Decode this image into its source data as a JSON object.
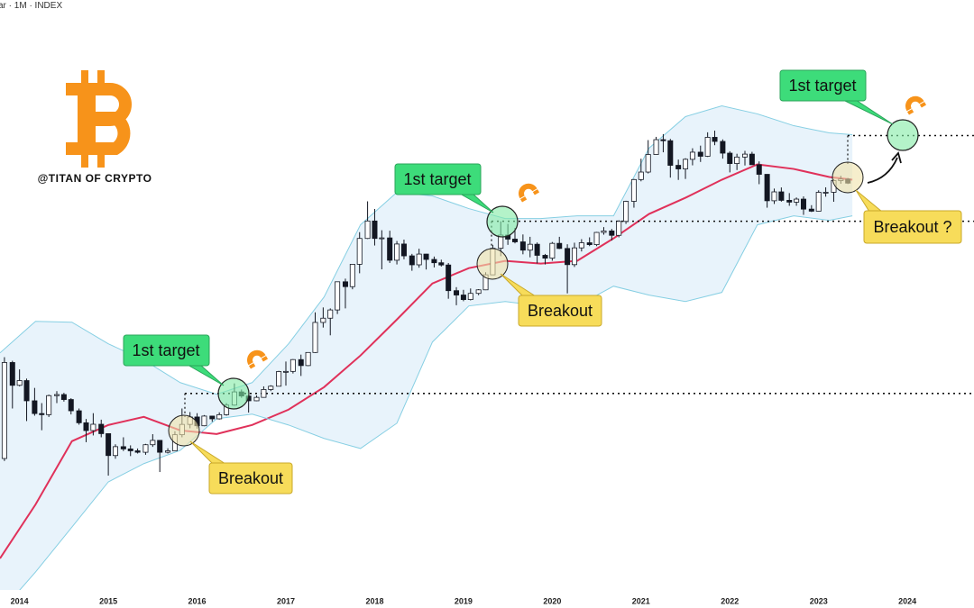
{
  "chart_data": {
    "type": "candlestick",
    "header": "ar · 1M · INDEX",
    "watermark": "@TITAN OF CRYPTO",
    "log_scale": true,
    "grid": false,
    "xlim": [
      2013.78,
      2024.75
    ],
    "xticks": [
      2014,
      2015,
      2016,
      2017,
      2018,
      2019,
      2020,
      2021,
      2022,
      2023,
      2024
    ],
    "ylim": [
      20,
      700000
    ],
    "up_color": "#ffffff",
    "down_color": "#131722",
    "x": [
      2013.83,
      2013.92,
      2014.0,
      2014.08,
      2014.17,
      2014.25,
      2014.33,
      2014.42,
      2014.5,
      2014.58,
      2014.67,
      2014.75,
      2014.83,
      2014.92,
      2015.0,
      2015.08,
      2015.17,
      2015.25,
      2015.33,
      2015.42,
      2015.5,
      2015.58,
      2015.67,
      2015.75,
      2015.83,
      2015.92,
      2016.0,
      2016.08,
      2016.17,
      2016.25,
      2016.33,
      2016.42,
      2016.5,
      2016.58,
      2016.67,
      2016.75,
      2016.83,
      2016.92,
      2017.0,
      2017.08,
      2017.17,
      2017.25,
      2017.33,
      2017.42,
      2017.5,
      2017.58,
      2017.67,
      2017.75,
      2017.83,
      2017.92,
      2018.0,
      2018.08,
      2018.17,
      2018.25,
      2018.33,
      2018.42,
      2018.5,
      2018.58,
      2018.67,
      2018.75,
      2018.83,
      2018.92,
      2019.0,
      2019.08,
      2019.17,
      2019.25,
      2019.33,
      2019.42,
      2019.5,
      2019.58,
      2019.67,
      2019.75,
      2019.83,
      2019.92,
      2020.0,
      2020.08,
      2020.17,
      2020.25,
      2020.33,
      2020.42,
      2020.5,
      2020.58,
      2020.67,
      2020.75,
      2020.83,
      2020.92,
      2021.0,
      2021.08,
      2021.17,
      2021.25,
      2021.33,
      2021.42,
      2021.5,
      2021.58,
      2021.67,
      2021.75,
      2021.83,
      2021.92,
      2022.0,
      2022.08,
      2022.17,
      2022.25,
      2022.33,
      2022.42,
      2022.5,
      2022.58,
      2022.67,
      2022.75,
      2022.83,
      2022.92,
      2023.0,
      2023.08,
      2023.17,
      2023.25,
      2023.33
    ],
    "open": [
      206,
      1130,
      754,
      820,
      573,
      457,
      448,
      628,
      640,
      586,
      480,
      388,
      338,
      378,
      320,
      217,
      254,
      244,
      236,
      230,
      263,
      284,
      230,
      236,
      314,
      377,
      430,
      368,
      437,
      416,
      448,
      531,
      671,
      624,
      573,
      609,
      700,
      742,
      963,
      965,
      1190,
      1070,
      1350,
      2300,
      2480,
      2870,
      4730,
      4340,
      6450,
      10200,
      13900,
      10200,
      10300,
      6930,
      9240,
      7490,
      6390,
      7730,
      7030,
      6630,
      6370,
      4040,
      3740,
      3450,
      3850,
      4100,
      5350,
      8570,
      10820,
      10080,
      9600,
      8290,
      9200,
      7560,
      7190,
      9350,
      8540,
      6410,
      8630,
      9450,
      9140,
      11350,
      11650,
      10780,
      13800,
      19700,
      28990,
      33100,
      45200,
      58800,
      57700,
      37300,
      35000,
      41500,
      47100,
      43800,
      61300,
      57000,
      46300,
      38500,
      43200,
      45500,
      37700,
      31800,
      19900,
      23300,
      20050,
      19420,
      20490,
      17160,
      16540,
      23120,
      23140,
      28460,
      29230
    ],
    "high": [
      1242,
      1165,
      1000,
      850,
      720,
      550,
      640,
      680,
      660,
      600,
      500,
      415,
      460,
      410,
      320,
      265,
      300,
      260,
      246,
      267,
      317,
      286,
      247,
      334,
      500,
      469,
      460,
      445,
      440,
      467,
      550,
      780,
      700,
      627,
      630,
      740,
      755,
      975,
      1150,
      1200,
      1300,
      1350,
      2750,
      3000,
      2950,
      4750,
      5000,
      6450,
      11400,
      19700,
      17200,
      11800,
      11700,
      9750,
      9990,
      7760,
      8500,
      7760,
      7400,
      7000,
      6600,
      4300,
      4100,
      4200,
      4150,
      5600,
      9100,
      13800,
      13200,
      12300,
      10950,
      10500,
      9500,
      7750,
      9580,
      10500,
      9200,
      9460,
      10070,
      10400,
      11450,
      12470,
      12080,
      14100,
      19900,
      29300,
      41950,
      58350,
      61800,
      64900,
      59600,
      41300,
      42300,
      50500,
      52900,
      67000,
      69000,
      59100,
      47900,
      45800,
      48200,
      47400,
      40000,
      31900,
      24700,
      25200,
      22800,
      21100,
      21500,
      18400,
      23950,
      25250,
      29200,
      31000,
      29800
    ],
    "low": [
      197,
      500,
      740,
      400,
      440,
      340,
      430,
      550,
      565,
      450,
      375,
      275,
      310,
      300,
      152,
      205,
      235,
      215,
      225,
      220,
      253,
      162,
      225,
      236,
      300,
      352,
      350,
      365,
      395,
      411,
      440,
      525,
      605,
      465,
      570,
      605,
      680,
      740,
      750,
      930,
      890,
      1060,
      1340,
      2100,
      1830,
      2670,
      2950,
      4140,
      5500,
      10100,
      9000,
      5900,
      6600,
      6430,
      7050,
      5750,
      6070,
      5880,
      6100,
      6200,
      3500,
      3120,
      3350,
      3400,
      3730,
      4080,
      5330,
      7450,
      9100,
      9350,
      7700,
      7300,
      6550,
      6430,
      6870,
      8450,
      3850,
      6150,
      8100,
      8900,
      8900,
      10900,
      9830,
      10400,
      13200,
      17600,
      28100,
      32300,
      45000,
      47000,
      30000,
      28800,
      29300,
      37300,
      39600,
      43300,
      53300,
      42000,
      32900,
      34300,
      37200,
      37600,
      26700,
      17600,
      18800,
      19600,
      18200,
      18200,
      15500,
      16300,
      16500,
      21400,
      19550,
      26900,
      26800
    ],
    "close": [
      1130,
      754,
      820,
      573,
      457,
      448,
      628,
      640,
      586,
      480,
      388,
      338,
      378,
      320,
      217,
      254,
      244,
      236,
      230,
      263,
      284,
      230,
      236,
      314,
      377,
      430,
      368,
      437,
      416,
      448,
      531,
      671,
      624,
      573,
      609,
      700,
      742,
      963,
      965,
      1190,
      1070,
      1350,
      2300,
      2480,
      2870,
      4730,
      4340,
      6450,
      10200,
      13900,
      10200,
      10300,
      6930,
      9240,
      7490,
      6390,
      7730,
      7030,
      6630,
      6370,
      4040,
      3740,
      3450,
      3850,
      4100,
      5350,
      8570,
      10820,
      10080,
      9600,
      8290,
      9200,
      7560,
      7190,
      9350,
      8540,
      6410,
      8630,
      9450,
      9140,
      11350,
      11650,
      10780,
      13800,
      19700,
      28990,
      33100,
      45200,
      58800,
      57700,
      37300,
      35000,
      41500,
      47100,
      43800,
      61300,
      57000,
      46300,
      38500,
      43200,
      45500,
      37700,
      31800,
      19900,
      23300,
      20050,
      19420,
      20490,
      17160,
      16540,
      23120,
      23140,
      28460,
      29230,
      27200
    ],
    "band_x": [
      2013.78,
      2014.18,
      2014.59,
      2015.0,
      2015.4,
      2015.81,
      2016.22,
      2016.62,
      2017.03,
      2017.43,
      2017.84,
      2018.25,
      2018.65,
      2019.06,
      2019.47,
      2019.87,
      2020.28,
      2020.69,
      2021.09,
      2021.5,
      2021.91,
      2022.31,
      2022.72,
      2023.12,
      2023.38
    ],
    "band_fill": "#e8f3fb",
    "bands": [
      {
        "color": "#86cfe3",
        "values": [
          1340,
          2345,
          2310,
          1574,
          1180,
          791,
          643,
          791,
          1574,
          3614,
          12990,
          23100,
          21680,
          17320,
          14520,
          14520,
          15240,
          15240,
          50580,
          88500,
          107200,
          92900,
          75340,
          66370,
          64270
        ]
      },
      {
        "color": "#e0315a",
        "values": [
          35,
          91,
          280,
          373,
          431,
          339,
          318,
          373,
          490,
          730,
          1279,
          2421,
          4592,
          6026,
          6855,
          6531,
          6855,
          10210,
          15740,
          20980,
          28900,
          37930,
          34990,
          30330,
          28900
        ]
      },
      {
        "color": "#86cfe3",
        "values": [
          13.4,
          27.5,
          61,
          136,
          188,
          238,
          417,
          452,
          373,
          294,
          246,
          385,
          1625,
          3080,
          3334,
          3080,
          3080,
          4375,
          3733,
          3334,
          3917,
          12990,
          15240,
          14060,
          15240
        ]
      }
    ],
    "target_levels": [
      653,
      13840,
      63250
    ],
    "target_labels": [
      "1st target",
      "1st target",
      "1st target"
    ],
    "breakout_labels": [
      "Breakout",
      "Breakout",
      "Breakout ?"
    ]
  }
}
